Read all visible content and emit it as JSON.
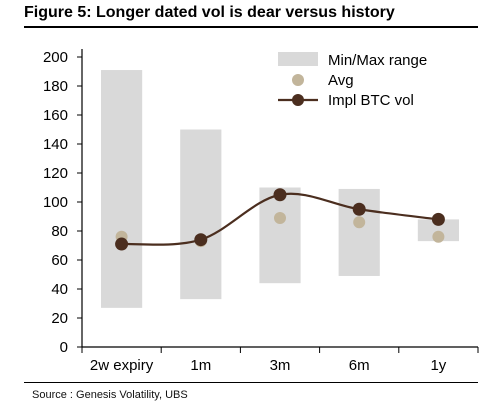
{
  "title": "Figure 5: Longer dated vol is dear versus history",
  "source": "Source : Genesis Volatility, UBS",
  "colors": {
    "range": "#d9d9d9",
    "avg": "#c2b59b",
    "line": "#4b2e1f"
  },
  "chart_data": {
    "type": "bar",
    "categories": [
      "2w expiry",
      "1m",
      "3m",
      "6m",
      "1y"
    ],
    "ylim": [
      0,
      200
    ],
    "yticks": [
      0,
      20,
      40,
      60,
      80,
      100,
      120,
      140,
      160,
      180,
      200
    ],
    "grid": false,
    "legend_position": "top-right",
    "series": [
      {
        "name": "Min/Max range",
        "kind": "floating-bar",
        "min": [
          27,
          33,
          44,
          49,
          73
        ],
        "max": [
          191,
          150,
          110,
          109,
          88
        ]
      },
      {
        "name": "Avg",
        "kind": "scatter",
        "values": [
          76,
          73,
          89,
          86,
          76
        ]
      },
      {
        "name": "Impl BTC vol",
        "kind": "smooth-line",
        "values": [
          71,
          74,
          105,
          95,
          88
        ]
      }
    ]
  }
}
